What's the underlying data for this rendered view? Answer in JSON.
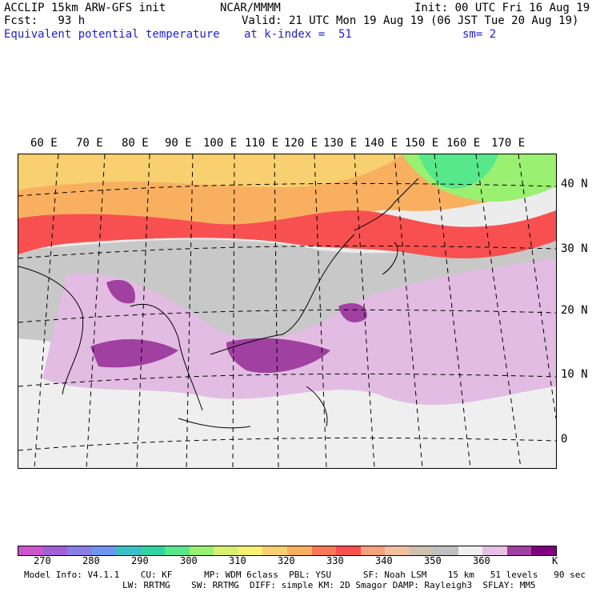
{
  "header": {
    "model": "ACCLIP 15km ARW-GFS init",
    "center": "NCAR/MMMM",
    "init": "Init: 00 UTC Fri 16 Aug 19",
    "fcst": "Fcst:   93 h",
    "valid": "Valid: 21 UTC Mon 19 Aug 19 (06 JST Tue 20 Aug 19)",
    "field": "Equivalent potential temperature",
    "level": "at k-index =  51",
    "smooth": "sm= 2"
  },
  "map": {
    "lon_labels": [
      "60 E",
      "70 E",
      "80 E",
      "90 E",
      "100 E",
      "110 E",
      "120 E",
      "130 E",
      "140 E",
      "150 E",
      "160 E",
      "170 E"
    ],
    "lat_labels": [
      "40 N",
      "30 N",
      "20 N",
      "10 N",
      "0"
    ]
  },
  "colorbar": {
    "colors": [
      "#cc55cc",
      "#a060d8",
      "#8a7ee6",
      "#6f96f0",
      "#3cc0c8",
      "#2fd4a0",
      "#56e88a",
      "#9af070",
      "#d8f070",
      "#f8f070",
      "#f8d070",
      "#f8b060",
      "#f87858",
      "#f85050",
      "#f8a080",
      "#f0c0a0",
      "#d0c0b0",
      "#c0c0c0",
      "#f0f0f0",
      "#e6c0e6",
      "#a040a0",
      "#800080"
    ],
    "labels": [
      "270",
      "280",
      "290",
      "300",
      "310",
      "320",
      "330",
      "340",
      "350",
      "360"
    ],
    "unit": "K"
  },
  "footer": {
    "line1": "Model Info: V4.1.1    CU: KF      MP: WDM 6class  PBL: YSU      SF: Noah LSM    15 km   51 levels   90 sec",
    "line2": "LW: RRTMG    SW: RRTMG  DIFF: simple KM: 2D Smagor DAMP: Rayleigh3  SFLAY: MM5"
  }
}
